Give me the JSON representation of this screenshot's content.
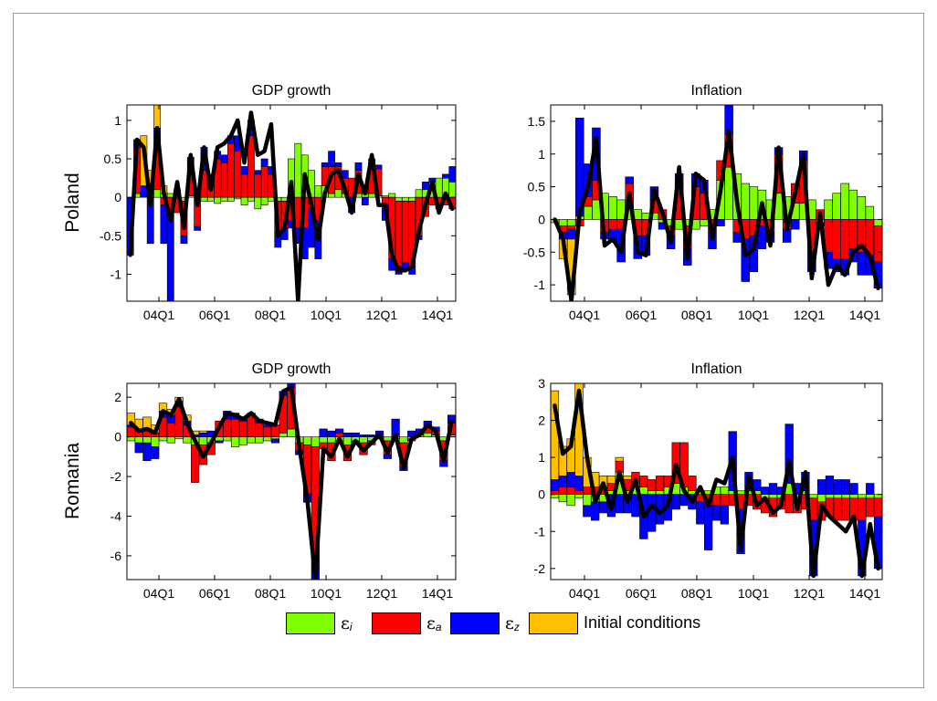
{
  "colors": {
    "eps_i": "#80ff00",
    "eps_a": "#ff0000",
    "eps_z": "#0000ff",
    "initial": "#ffc000",
    "line": "#000000"
  },
  "legend": [
    {
      "symbol": "ε",
      "sub": "i",
      "color": "#80ff00"
    },
    {
      "symbol": "ε",
      "sub": "a",
      "color": "#ff0000"
    },
    {
      "symbol": "ε",
      "sub": "z",
      "color": "#0000ff"
    },
    {
      "symbol": "",
      "sub": "",
      "text": "Initial conditions",
      "color": "#ffc000"
    }
  ],
  "chart_data": [
    {
      "type": "bar",
      "stacked": true,
      "title": "GDP growth",
      "ylabel": "Poland",
      "x_tick_labels": [
        "04Q1",
        "06Q1",
        "08Q1",
        "10Q1",
        "12Q1",
        "14Q1"
      ],
      "y_ticks": [
        -1,
        -0.5,
        0,
        0.5,
        1
      ],
      "y_tick_labels": [
        "-1",
        "-0.5",
        "0",
        "0.5",
        "1"
      ],
      "ylim": [
        -1.35,
        1.2
      ],
      "line": [
        -0.75,
        0.75,
        0.65,
        -0.1,
        0.9,
        0.05,
        -0.3,
        0.2,
        -0.4,
        0.55,
        -0.1,
        0.65,
        0.1,
        0.65,
        0.7,
        0.8,
        1.0,
        0.45,
        1.1,
        0.55,
        0.6,
        0.95,
        -0.5,
        -0.4,
        0.2,
        -1.35,
        0.3,
        -0.1,
        -0.55,
        0.05,
        0.3,
        0.35,
        0.1,
        -0.2,
        0.3,
        0.05,
        0.55,
        -0.1,
        -0.1,
        -0.75,
        -0.95,
        -0.95,
        -0.9,
        -0.45,
        -0.1,
        0.2,
        -0.2,
        0.05,
        -0.15
      ],
      "series": [
        {
          "name": "ε_i",
          "values": [
            0.0,
            0.05,
            0.0,
            0.05,
            0.1,
            0.05,
            0.05,
            0.0,
            -0.05,
            0.02,
            -0.03,
            -0.05,
            -0.05,
            -0.08,
            -0.05,
            -0.05,
            -0.02,
            -0.1,
            -0.05,
            -0.15,
            -0.1,
            -0.05,
            -0.05,
            -0.05,
            0.5,
            0.7,
            0.55,
            0.35,
            0.15,
            0.15,
            0.05,
            0.1,
            0.05,
            0.0,
            0.05,
            0.05,
            0.05,
            0.02,
            0.02,
            0.05,
            -0.05,
            -0.05,
            -0.05,
            0.1,
            0.1,
            0.2,
            0.25,
            0.25,
            0.2
          ]
        },
        {
          "name": "ε_a",
          "values": [
            0.0,
            0.6,
            0.0,
            0.0,
            0.6,
            -0.1,
            -0.25,
            -0.2,
            -0.45,
            0.3,
            -0.35,
            0.35,
            0.15,
            0.5,
            0.45,
            0.7,
            0.6,
            0.3,
            0.8,
            0.3,
            0.4,
            0.3,
            -0.4,
            -0.35,
            -0.3,
            -0.4,
            -0.4,
            -0.15,
            -0.3,
            0.25,
            0.35,
            0.3,
            0.2,
            0.25,
            0.3,
            0.1,
            0.35,
            0.35,
            -0.1,
            -0.8,
            -0.85,
            -0.8,
            -0.85,
            -0.5,
            -0.25,
            -0.1,
            -0.1,
            -0.1,
            -0.15
          ]
        },
        {
          "name": "ε_z",
          "values": [
            -0.75,
            0.1,
            0.15,
            -0.6,
            0.2,
            -0.5,
            -1.2,
            0.1,
            -0.1,
            0.2,
            -0.05,
            0.3,
            0.15,
            0.1,
            0.1,
            0.1,
            0.2,
            0.1,
            0.2,
            0.05,
            0.1,
            0.1,
            -0.2,
            -0.15,
            -0.1,
            -0.2,
            -0.4,
            -0.5,
            -0.5,
            0.05,
            0.2,
            0.05,
            0.1,
            -0.2,
            0.1,
            -0.1,
            0.1,
            0.05,
            -0.2,
            -0.15,
            -0.1,
            -0.1,
            -0.1,
            -0.05,
            0.1,
            0.05,
            -0.05,
            0.05,
            0.2
          ]
        },
        {
          "name": "Initial conditions",
          "values": [
            0.0,
            0.0,
            0.65,
            0.3,
            0.4,
            0.1,
            0.0,
            0.0,
            0.0,
            0.0,
            0.0,
            0.0,
            0.0,
            0.0,
            0.0,
            0.0,
            0.0,
            0.0,
            0.0,
            0.0,
            0.0,
            0.0,
            0.0,
            0.0,
            0.0,
            0.0,
            0.0,
            0.0,
            0.0,
            0.0,
            0.0,
            0.0,
            0.0,
            0.0,
            0.0,
            0.0,
            0.0,
            0.0,
            0.0,
            0.0,
            0.0,
            0.0,
            0.0,
            0.0,
            0.0,
            0.0,
            0.0,
            0.0,
            0.0
          ]
        }
      ]
    },
    {
      "type": "bar",
      "stacked": true,
      "title": "Inflation",
      "ylabel": "",
      "x_tick_labels": [
        "04Q1",
        "06Q1",
        "08Q1",
        "10Q1",
        "12Q1",
        "14Q1"
      ],
      "y_ticks": [
        -1,
        -0.5,
        0,
        0.5,
        1,
        1.5
      ],
      "y_tick_labels": [
        "-1",
        "-0.5",
        "0",
        "0.5",
        "1",
        "1.5"
      ],
      "ylim": [
        -1.25,
        1.75
      ],
      "line": [
        0.0,
        -0.3,
        -1.25,
        0.1,
        0.5,
        1.25,
        -0.4,
        -0.3,
        -0.5,
        0.4,
        -0.5,
        -0.55,
        0.45,
        0.1,
        -0.35,
        0.8,
        -0.6,
        0.7,
        0.6,
        -0.3,
        0.45,
        1.35,
        0.25,
        -0.55,
        -0.45,
        0.25,
        -0.4,
        1.1,
        -0.15,
        0.4,
        1.0,
        -0.9,
        0.1,
        -1.0,
        -0.7,
        -0.85,
        -0.5,
        -0.4,
        -0.55,
        -1.05
      ],
      "series": [
        {
          "name": "ε_i",
          "values": [
            -0.05,
            -0.1,
            -0.1,
            0.05,
            0.2,
            0.3,
            0.4,
            0.35,
            0.3,
            0.25,
            0.15,
            0.1,
            0.1,
            -0.05,
            -0.1,
            -0.15,
            -0.1,
            -0.15,
            -0.1,
            0.15,
            0.6,
            0.8,
            0.7,
            0.55,
            0.5,
            0.45,
            0.3,
            0.4,
            0.35,
            0.25,
            0.25,
            0.3,
            -0.05,
            0.3,
            0.4,
            0.55,
            0.45,
            0.35,
            0.2,
            -0.1
          ]
        },
        {
          "name": "ε_a",
          "values": [
            0.0,
            -0.1,
            -0.05,
            -0.1,
            0.15,
            0.3,
            -0.2,
            -0.15,
            -0.15,
            0.3,
            -0.25,
            -0.25,
            0.2,
            0.15,
            -0.15,
            0.5,
            -0.35,
            0.5,
            0.4,
            -0.2,
            0.3,
            0.5,
            -0.2,
            -0.3,
            -0.25,
            -0.1,
            -0.2,
            0.6,
            -0.15,
            0.3,
            0.65,
            -0.5,
            0.15,
            -0.5,
            -0.6,
            -0.6,
            -0.45,
            -0.5,
            -0.55,
            -0.55
          ]
        },
        {
          "name": "ε_z",
          "values": [
            0.0,
            -0.1,
            -0.15,
            1.5,
            0.5,
            0.8,
            -0.1,
            -0.2,
            -0.5,
            0.1,
            -0.35,
            -0.3,
            0.2,
            -0.1,
            -0.2,
            0.2,
            -0.25,
            0.2,
            0.2,
            -0.25,
            -0.1,
            0.45,
            -0.15,
            -0.65,
            -0.55,
            -0.35,
            -0.15,
            0.1,
            -0.2,
            -0.15,
            0.15,
            -0.3,
            -0.05,
            -0.25,
            -0.2,
            -0.25,
            -0.2,
            -0.35,
            -0.3,
            -0.4
          ]
        },
        {
          "name": "Initial conditions",
          "values": [
            0.0,
            -0.3,
            -0.85,
            0.0,
            0.0,
            0.0,
            0.0,
            0.0,
            0.0,
            0.0,
            0.0,
            0.0,
            0.0,
            0.0,
            0.0,
            0.0,
            0.0,
            0.0,
            0.0,
            0.0,
            0.0,
            0.0,
            0.0,
            0.0,
            0.0,
            0.0,
            0.0,
            0.0,
            0.0,
            0.0,
            0.0,
            0.0,
            0.0,
            0.0,
            0.0,
            0.0,
            0.0,
            0.0,
            0.0,
            0.0
          ]
        }
      ]
    },
    {
      "type": "bar",
      "stacked": true,
      "title": "GDP growth",
      "ylabel": "Romania",
      "x_tick_labels": [
        "04Q1",
        "06Q1",
        "08Q1",
        "10Q1",
        "12Q1",
        "14Q1"
      ],
      "y_ticks": [
        -6,
        -4,
        -2,
        0,
        2
      ],
      "y_tick_labels": [
        "-6",
        "-4",
        "-2",
        "0",
        "2"
      ],
      "ylim": [
        -7.2,
        2.7
      ],
      "line": [
        0.7,
        0.3,
        0.4,
        0.2,
        1.3,
        1.1,
        1.9,
        0.7,
        -0.2,
        -1.0,
        -0.3,
        0.5,
        1.2,
        1.1,
        0.9,
        1.2,
        0.8,
        0.7,
        0.6,
        2.3,
        2.5,
        -0.5,
        -3.2,
        -7.2,
        -0.6,
        -1.0,
        -0.1,
        -1.0,
        -0.2,
        -0.7,
        -0.3,
        0.1,
        -0.8,
        0.1,
        -1.6,
        -0.1,
        0.1,
        0.6,
        0.3,
        -1.2,
        0.8
      ],
      "series": [
        {
          "name": "ε_i",
          "values": [
            -0.2,
            -0.3,
            -0.3,
            -0.5,
            -0.2,
            -0.3,
            -0.1,
            -0.3,
            -0.4,
            -0.4,
            -0.3,
            -0.2,
            -0.2,
            -0.5,
            -0.4,
            -0.3,
            -0.3,
            -0.2,
            -0.1,
            0.2,
            0.4,
            -0.3,
            -0.4,
            -0.5,
            -0.3,
            -0.3,
            -0.2,
            -0.4,
            -0.2,
            -0.3,
            -0.2,
            -0.1,
            -0.2,
            -0.1,
            -0.3,
            -0.1,
            0.1,
            0.2,
            0.1,
            -0.2,
            0.1
          ]
        },
        {
          "name": "ε_a",
          "values": [
            0.5,
            0.3,
            0.3,
            0.2,
            1.0,
            0.7,
            1.5,
            0.6,
            -1.9,
            -1.0,
            -0.6,
            0.8,
            0.9,
            0.9,
            0.8,
            1.1,
            0.7,
            0.5,
            0.6,
            1.9,
            2.1,
            -0.4,
            -2.5,
            -5.5,
            -0.3,
            -0.9,
            0.2,
            -0.8,
            -0.1,
            -0.6,
            -0.2,
            0.1,
            -0.7,
            0.1,
            -1.2,
            -0.1,
            0.1,
            0.3,
            0.2,
            -1.0,
            0.6
          ]
        },
        {
          "name": "ε_z",
          "values": [
            0.1,
            -0.5,
            -0.9,
            -0.6,
            0.3,
            0.4,
            0.3,
            0.2,
            0.1,
            0.2,
            0.3,
            -0.1,
            0.4,
            0.3,
            0.2,
            0.1,
            0.2,
            0.1,
            -0.2,
            0.2,
            0.2,
            -0.2,
            -0.4,
            -1.2,
            0.4,
            0.3,
            0.2,
            0.2,
            0.2,
            0.1,
            0.1,
            0.2,
            -0.2,
            0.8,
            -0.2,
            0.3,
            0.2,
            0.3,
            0.2,
            -0.3,
            0.4
          ]
        },
        {
          "name": "Initial conditions",
          "values": [
            0.6,
            0.6,
            0.7,
            0.4,
            0.4,
            0.3,
            0.2,
            0.3,
            0.2,
            0.1,
            0.0,
            0.0,
            0.0,
            0.0,
            0.0,
            0.0,
            0.0,
            0.0,
            0.0,
            0.0,
            0.0,
            0.0,
            0.0,
            0.0,
            0.0,
            0.0,
            0.0,
            0.0,
            0.0,
            0.0,
            0.0,
            0.0,
            0.0,
            0.0,
            0.0,
            0.0,
            0.0,
            0.0,
            0.0,
            0.0,
            0.0
          ]
        }
      ]
    },
    {
      "type": "bar",
      "stacked": true,
      "title": "Inflation",
      "ylabel": "",
      "x_tick_labels": [
        "04Q1",
        "06Q1",
        "08Q1",
        "10Q1",
        "12Q1",
        "14Q1"
      ],
      "y_ticks": [
        -2,
        -1,
        0,
        1,
        2,
        3
      ],
      "y_tick_labels": [
        "-2",
        "-1",
        "0",
        "1",
        "2",
        "3"
      ],
      "ylim": [
        -2.3,
        3.0
      ],
      "line": [
        2.4,
        1.1,
        1.3,
        2.8,
        1.0,
        -0.2,
        0.3,
        -0.4,
        0.6,
        -0.2,
        0.4,
        -0.6,
        -0.3,
        -0.5,
        -0.3,
        0.8,
        0.1,
        -0.2,
        0.2,
        -0.3,
        0.4,
        0.3,
        1.0,
        -1.5,
        0.5,
        -0.3,
        -0.1,
        -0.5,
        -0.3,
        0.9,
        -0.4,
        0.6,
        -2.2,
        -0.3,
        -0.6,
        -0.8,
        -1.0,
        -0.6,
        -2.2,
        -0.8,
        -2.0
      ],
      "series": [
        {
          "name": "ε_i",
          "values": [
            -0.1,
            -0.2,
            -0.3,
            -0.1,
            -0.3,
            -0.2,
            -0.2,
            0.1,
            0.6,
            0.1,
            0.3,
            0.2,
            0.1,
            0.1,
            0.2,
            0.3,
            0.2,
            0.1,
            0.1,
            0.1,
            0.2,
            0.2,
            0.1,
            0.1,
            0.1,
            0.1,
            -0.1,
            -0.1,
            -0.1,
            0.3,
            -0.1,
            0.1,
            -0.1,
            -0.2,
            -0.1,
            -0.1,
            -0.1,
            -0.1,
            -0.1,
            -0.1,
            -0.1
          ]
        },
        {
          "name": "ε_a",
          "values": [
            0.1,
            0.2,
            0.2,
            0.1,
            0.2,
            0.2,
            0.2,
            0.2,
            0.3,
            0.3,
            0.3,
            0.3,
            0.3,
            0.4,
            0.3,
            1.1,
            1.2,
            0.4,
            -0.2,
            -0.3,
            -0.3,
            -0.3,
            -0.3,
            -0.4,
            -0.3,
            -0.4,
            -0.4,
            -0.5,
            -0.3,
            -0.5,
            -0.4,
            -0.4,
            -0.6,
            -0.5,
            -0.5,
            -0.6,
            -0.6,
            -0.6,
            -0.6,
            -0.5,
            -0.5
          ]
        },
        {
          "name": "ε_z",
          "values": [
            0.3,
            0.3,
            0.4,
            0.4,
            -0.3,
            -0.5,
            -0.3,
            -0.6,
            -0.5,
            -0.5,
            -0.6,
            -1.2,
            -1.0,
            -0.8,
            -0.7,
            -0.4,
            -0.3,
            -0.4,
            -0.6,
            -1.2,
            -0.4,
            -0.5,
            1.6,
            -1.2,
            0.5,
            0.3,
            0.2,
            0.3,
            0.2,
            1.6,
            0.3,
            0.5,
            -1.5,
            0.4,
            0.5,
            0.4,
            0.4,
            0.3,
            -1.5,
            0.3,
            -1.4
          ]
        },
        {
          "name": "Initial conditions",
          "values": [
            2.4,
            0.8,
            0.9,
            2.5,
            0.8,
            0.4,
            0.3,
            0.2,
            0.1,
            0.1,
            0.0,
            0.0,
            0.0,
            0.0,
            0.0,
            0.0,
            0.0,
            0.0,
            0.0,
            0.0,
            0.0,
            0.0,
            0.0,
            0.0,
            0.0,
            0.0,
            0.0,
            0.0,
            0.0,
            0.0,
            0.0,
            0.0,
            0.0,
            0.0,
            0.0,
            0.0,
            0.0,
            0.0,
            0.0,
            0.0,
            0.0
          ]
        }
      ]
    }
  ]
}
